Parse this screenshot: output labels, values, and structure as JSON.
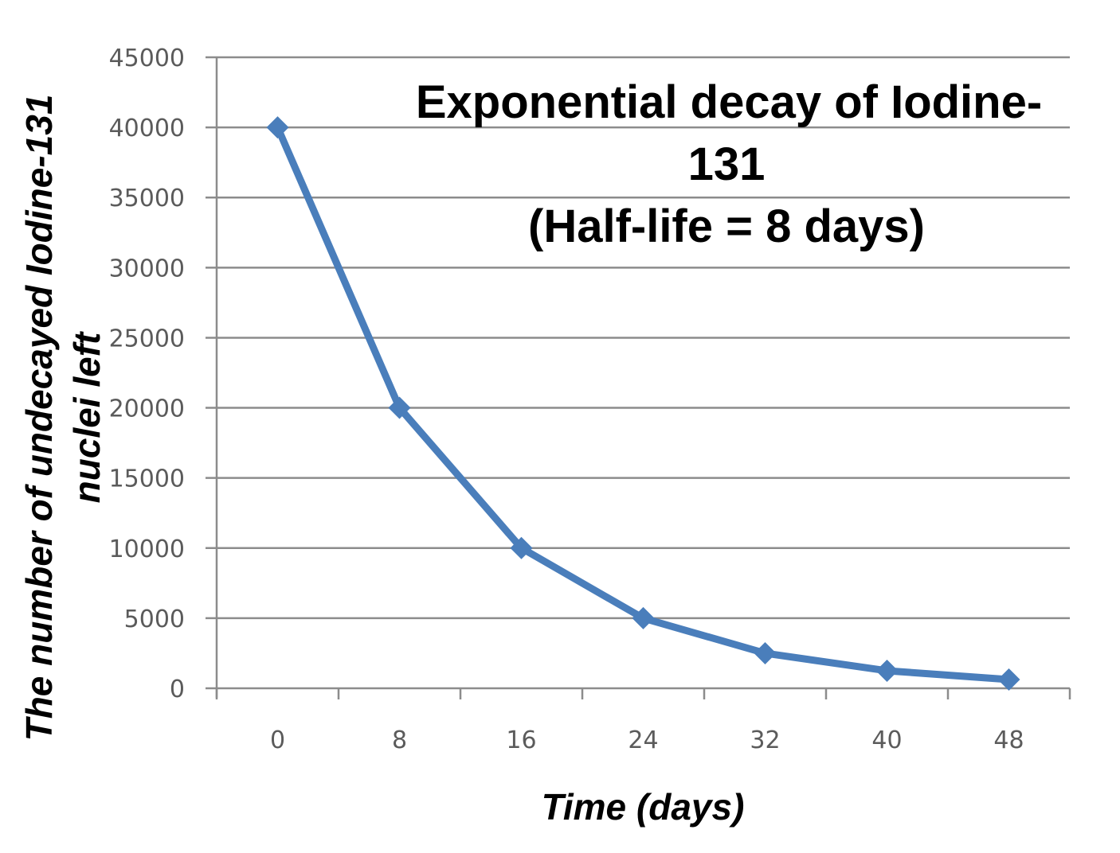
{
  "chart_data": {
    "type": "line",
    "title_lines": [
      "Exponential decay of Iodine-",
      "131",
      "(Half-life = 8 days)"
    ],
    "xlabel": "Time (days)",
    "ylabel_lines": [
      "The number of undecayed Iodine-131",
      "nuclei left"
    ],
    "categories": [
      "0",
      "8",
      "16",
      "24",
      "32",
      "40",
      "48"
    ],
    "series": [
      {
        "values": [
          40000,
          20000,
          10000,
          5000,
          2500,
          1250,
          625
        ]
      }
    ],
    "ylim": [
      0,
      45000
    ],
    "yticks": [
      0,
      5000,
      10000,
      15000,
      20000,
      25000,
      30000,
      35000,
      40000,
      45000
    ],
    "grid": true,
    "marker": "diamond"
  },
  "colors": {
    "series": "#4a7ebb",
    "grid": "#8c8c8c",
    "axis": "#8c8c8c",
    "tick_text": "#5b5b5b"
  }
}
